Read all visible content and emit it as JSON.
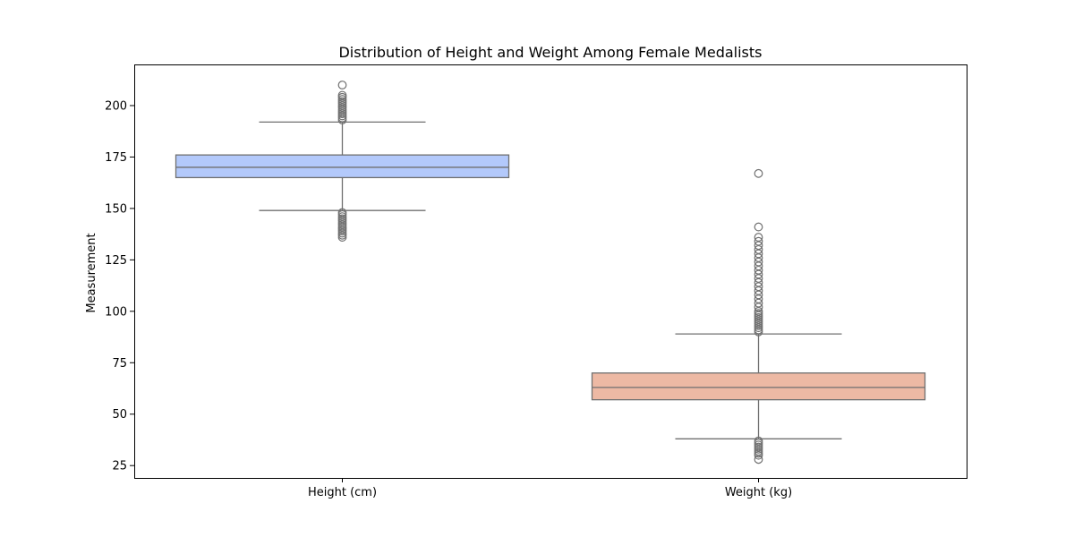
{
  "chart_data": {
    "type": "box",
    "title": "Distribution of Height and Weight Among Female Medalists",
    "xlabel": "",
    "ylabel": "Measurement",
    "ylim": [
      19,
      220
    ],
    "yticks": [
      25,
      50,
      75,
      100,
      125,
      150,
      175,
      200
    ],
    "grid": false,
    "categories": [
      "Height (cm)",
      "Weight (kg)"
    ],
    "boxes": [
      {
        "category": "Height (cm)",
        "color": "#b3c9fb",
        "whisker_low": 149,
        "q1": 165,
        "median": 170,
        "q3": 176,
        "whisker_high": 192,
        "outliers": [
          136,
          137,
          138,
          139,
          140,
          141,
          142,
          143,
          144,
          145,
          146,
          147,
          148,
          193,
          194,
          195,
          196,
          197,
          198,
          199,
          200,
          201,
          202,
          203,
          204,
          205,
          210
        ]
      },
      {
        "category": "Weight (kg)",
        "color": "#edb9a4",
        "whisker_low": 38,
        "q1": 57,
        "median": 63,
        "q3": 70,
        "whisker_high": 89,
        "outliers": [
          28,
          30,
          31,
          32,
          33,
          34,
          35,
          36,
          37,
          90,
          91,
          92,
          93,
          94,
          95,
          96,
          97,
          98,
          99,
          100,
          102,
          104,
          106,
          108,
          110,
          112,
          114,
          116,
          118,
          120,
          122,
          124,
          126,
          128,
          130,
          132,
          134,
          136,
          141,
          167
        ]
      }
    ]
  }
}
